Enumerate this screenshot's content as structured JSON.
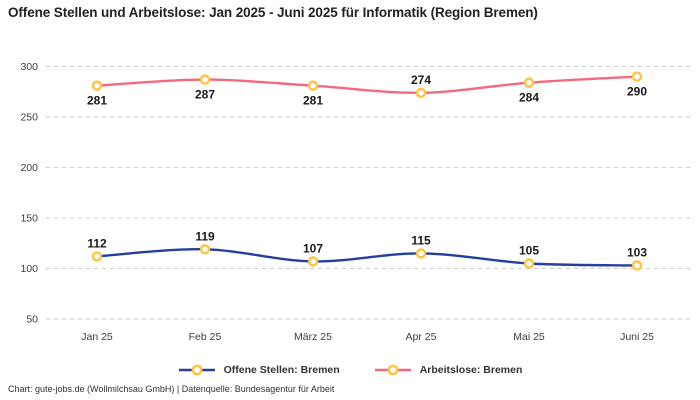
{
  "chart_data": {
    "type": "line",
    "title": "Offene Stellen und Arbeitslose: Jan 2025 - Juni 2025 für Informatik (Region Bremen)",
    "categories": [
      "Jan 25",
      "Feb 25",
      "März 25",
      "Apr 25",
      "Mai 25",
      "Juni 25"
    ],
    "series": [
      {
        "name": "Offene Stellen: Bremen",
        "values": [
          112,
          119,
          107,
          115,
          105,
          103
        ],
        "color": "#24409E",
        "label_positions": [
          "above",
          "above",
          "above",
          "above",
          "above",
          "above"
        ]
      },
      {
        "name": "Arbeitslose: Bremen",
        "values": [
          281,
          287,
          281,
          274,
          284,
          290
        ],
        "color": "#F5697F",
        "label_positions": [
          "below",
          "below",
          "below",
          "above",
          "below",
          "below"
        ]
      }
    ],
    "marker_color": "#FFC33D",
    "marker_fill": "#FFFFFF",
    "xlabel": "",
    "ylabel": "",
    "ylim": [
      50,
      300
    ],
    "yticks": [
      50,
      100,
      150,
      200,
      250,
      300
    ],
    "grid": "horizontal-dashed",
    "grid_color": "#CDCDCD",
    "label_color": "#1A1A1A",
    "tick_color": "#3D3D3D",
    "legend_position": "bottom"
  },
  "footer": {
    "text": "Chart: gute-jobs.de (Wollmilchsau GmbH) | Datenquelle: Bundesagentur für Arbeit"
  }
}
